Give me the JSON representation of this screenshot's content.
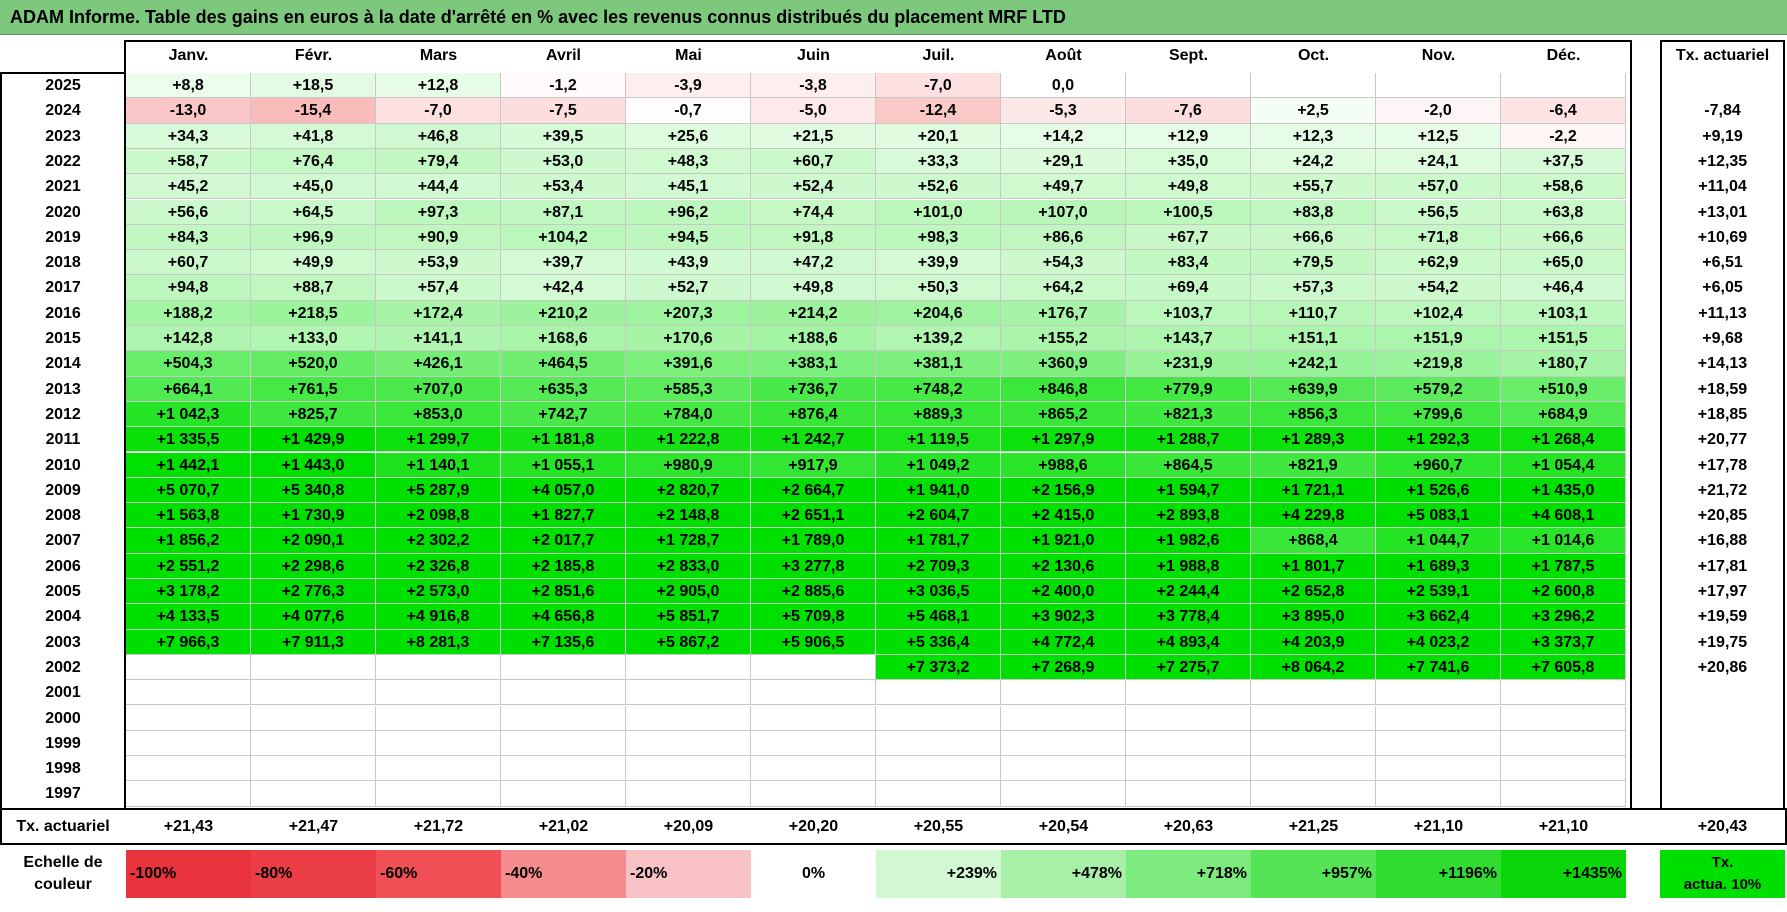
{
  "title": "ADAM Informe. Table des gains en euros à la date d'arrêté en % avec les revenus connus distribués du placement MRF LTD",
  "months": [
    "Janv.",
    "Févr.",
    "Mars",
    "Avril",
    "Mai",
    "Juin",
    "Juil.",
    "Août",
    "Sept.",
    "Oct.",
    "Nov.",
    "Déc."
  ],
  "actuarial_header": "Tx. actuariel",
  "rows": [
    {
      "year": "2025",
      "values": [
        "+8,8",
        "+18,5",
        "+12,8",
        "-1,2",
        "-3,9",
        "-3,8",
        "-7,0",
        "0,0",
        "",
        "",
        "",
        ""
      ],
      "rate": ""
    },
    {
      "year": "2024",
      "values": [
        "-13,0",
        "-15,4",
        "-7,0",
        "-7,5",
        "-0,7",
        "-5,0",
        "-12,4",
        "-5,3",
        "-7,6",
        "+2,5",
        "-2,0",
        "-6,4"
      ],
      "rate": "-7,84"
    },
    {
      "year": "2023",
      "values": [
        "+34,3",
        "+41,8",
        "+46,8",
        "+39,5",
        "+25,6",
        "+21,5",
        "+20,1",
        "+14,2",
        "+12,9",
        "+12,3",
        "+12,5",
        "-2,2"
      ],
      "rate": "+9,19"
    },
    {
      "year": "2022",
      "values": [
        "+58,7",
        "+76,4",
        "+79,4",
        "+53,0",
        "+48,3",
        "+60,7",
        "+33,3",
        "+29,1",
        "+35,0",
        "+24,2",
        "+24,1",
        "+37,5"
      ],
      "rate": "+12,35"
    },
    {
      "year": "2021",
      "values": [
        "+45,2",
        "+45,0",
        "+44,4",
        "+53,4",
        "+45,1",
        "+52,4",
        "+52,6",
        "+49,7",
        "+49,8",
        "+55,7",
        "+57,0",
        "+58,6"
      ],
      "rate": "+11,04"
    },
    {
      "year": "2020",
      "values": [
        "+56,6",
        "+64,5",
        "+97,3",
        "+87,1",
        "+96,2",
        "+74,4",
        "+101,0",
        "+107,0",
        "+100,5",
        "+83,8",
        "+56,5",
        "+63,8"
      ],
      "rate": "+13,01"
    },
    {
      "year": "2019",
      "values": [
        "+84,3",
        "+96,9",
        "+90,9",
        "+104,2",
        "+94,5",
        "+91,8",
        "+98,3",
        "+86,6",
        "+67,7",
        "+66,6",
        "+71,8",
        "+66,6"
      ],
      "rate": "+10,69"
    },
    {
      "year": "2018",
      "values": [
        "+60,7",
        "+49,9",
        "+53,9",
        "+39,7",
        "+43,9",
        "+47,2",
        "+39,9",
        "+54,3",
        "+83,4",
        "+79,5",
        "+62,9",
        "+65,0"
      ],
      "rate": "+6,51"
    },
    {
      "year": "2017",
      "values": [
        "+94,8",
        "+88,7",
        "+57,4",
        "+42,4",
        "+52,7",
        "+49,8",
        "+50,3",
        "+64,2",
        "+69,4",
        "+57,3",
        "+54,2",
        "+46,4"
      ],
      "rate": "+6,05"
    },
    {
      "year": "2016",
      "values": [
        "+188,2",
        "+218,5",
        "+172,4",
        "+210,2",
        "+207,3",
        "+214,2",
        "+204,6",
        "+176,7",
        "+103,7",
        "+110,7",
        "+102,4",
        "+103,1"
      ],
      "rate": "+11,13"
    },
    {
      "year": "2015",
      "values": [
        "+142,8",
        "+133,0",
        "+141,1",
        "+168,6",
        "+170,6",
        "+188,6",
        "+139,2",
        "+155,2",
        "+143,7",
        "+151,1",
        "+151,9",
        "+151,5"
      ],
      "rate": "+9,68"
    },
    {
      "year": "2014",
      "values": [
        "+504,3",
        "+520,0",
        "+426,1",
        "+464,5",
        "+391,6",
        "+383,1",
        "+381,1",
        "+360,9",
        "+231,9",
        "+242,1",
        "+219,8",
        "+180,7"
      ],
      "rate": "+14,13"
    },
    {
      "year": "2013",
      "values": [
        "+664,1",
        "+761,5",
        "+707,0",
        "+635,3",
        "+585,3",
        "+736,7",
        "+748,2",
        "+846,8",
        "+779,9",
        "+639,9",
        "+579,2",
        "+510,9"
      ],
      "rate": "+18,59"
    },
    {
      "year": "2012",
      "values": [
        "+1 042,3",
        "+825,7",
        "+853,0",
        "+742,7",
        "+784,0",
        "+876,4",
        "+889,3",
        "+865,2",
        "+821,3",
        "+856,3",
        "+799,6",
        "+684,9"
      ],
      "rate": "+18,85"
    },
    {
      "year": "2011",
      "values": [
        "+1 335,5",
        "+1 429,9",
        "+1 299,7",
        "+1 181,8",
        "+1 222,8",
        "+1 242,7",
        "+1 119,5",
        "+1 297,9",
        "+1 288,7",
        "+1 289,3",
        "+1 292,3",
        "+1 268,4"
      ],
      "rate": "+20,77"
    },
    {
      "year": "2010",
      "values": [
        "+1 442,1",
        "+1 443,0",
        "+1 140,1",
        "+1 055,1",
        "+980,9",
        "+917,9",
        "+1 049,2",
        "+988,6",
        "+864,5",
        "+821,9",
        "+960,7",
        "+1 054,4"
      ],
      "rate": "+17,78"
    },
    {
      "year": "2009",
      "values": [
        "+5 070,7",
        "+5 340,8",
        "+5 287,9",
        "+4 057,0",
        "+2 820,7",
        "+2 664,7",
        "+1 941,0",
        "+2 156,9",
        "+1 594,7",
        "+1 721,1",
        "+1 526,6",
        "+1 435,0"
      ],
      "rate": "+21,72"
    },
    {
      "year": "2008",
      "values": [
        "+1 563,8",
        "+1 730,9",
        "+2 098,8",
        "+1 827,7",
        "+2 148,8",
        "+2 651,1",
        "+2 604,7",
        "+2 415,0",
        "+2 893,8",
        "+4 229,8",
        "+5 083,1",
        "+4 608,1"
      ],
      "rate": "+20,85"
    },
    {
      "year": "2007",
      "values": [
        "+1 856,2",
        "+2 090,1",
        "+2 302,2",
        "+2 017,7",
        "+1 728,7",
        "+1 789,0",
        "+1 781,7",
        "+1 921,0",
        "+1 982,6",
        "+868,4",
        "+1 044,7",
        "+1 014,6"
      ],
      "rate": "+16,88"
    },
    {
      "year": "2006",
      "values": [
        "+2 551,2",
        "+2 298,6",
        "+2 326,8",
        "+2 185,8",
        "+2 833,0",
        "+3 277,8",
        "+2 709,3",
        "+2 130,6",
        "+1 988,8",
        "+1 801,7",
        "+1 689,3",
        "+1 787,5"
      ],
      "rate": "+17,81"
    },
    {
      "year": "2005",
      "values": [
        "+3 178,2",
        "+2 776,3",
        "+2 573,0",
        "+2 851,6",
        "+2 905,0",
        "+2 885,6",
        "+3 036,5",
        "+2 400,0",
        "+2 244,4",
        "+2 652,8",
        "+2 539,1",
        "+2 600,8"
      ],
      "rate": "+17,97"
    },
    {
      "year": "2004",
      "values": [
        "+4 133,5",
        "+4 077,6",
        "+4 916,8",
        "+4 656,8",
        "+5 851,7",
        "+5 709,8",
        "+5 468,1",
        "+3 902,3",
        "+3 778,4",
        "+3 895,0",
        "+3 662,4",
        "+3 296,2"
      ],
      "rate": "+19,59"
    },
    {
      "year": "2003",
      "values": [
        "+7 966,3",
        "+7 911,3",
        "+8 281,3",
        "+7 135,6",
        "+5 867,2",
        "+5 906,5",
        "+5 336,4",
        "+4 772,4",
        "+4 893,4",
        "+4 203,9",
        "+4 023,2",
        "+3 373,7"
      ],
      "rate": "+19,75"
    },
    {
      "year": "2002",
      "values": [
        "",
        "",
        "",
        "",
        "",
        "",
        "+7 373,2",
        "+7 268,9",
        "+7 275,7",
        "+8 064,2",
        "+7 741,6",
        "+7 605,8"
      ],
      "rate": "+20,86"
    },
    {
      "year": "2001",
      "values": [
        "",
        "",
        "",
        "",
        "",
        "",
        "",
        "",
        "",
        "",
        "",
        ""
      ],
      "rate": ""
    },
    {
      "year": "2000",
      "values": [
        "",
        "",
        "",
        "",
        "",
        "",
        "",
        "",
        "",
        "",
        "",
        ""
      ],
      "rate": ""
    },
    {
      "year": "1999",
      "values": [
        "",
        "",
        "",
        "",
        "",
        "",
        "",
        "",
        "",
        "",
        "",
        ""
      ],
      "rate": ""
    },
    {
      "year": "1998",
      "values": [
        "",
        "",
        "",
        "",
        "",
        "",
        "",
        "",
        "",
        "",
        "",
        ""
      ],
      "rate": ""
    },
    {
      "year": "1997",
      "values": [
        "",
        "",
        "",
        "",
        "",
        "",
        "",
        "",
        "",
        "",
        "",
        ""
      ],
      "rate": ""
    }
  ],
  "footer": {
    "label": "Tx. actuariel",
    "values": [
      "+21,43",
      "+21,47",
      "+21,72",
      "+21,02",
      "+20,09",
      "+20,20",
      "+20,55",
      "+20,54",
      "+20,63",
      "+21,25",
      "+21,10",
      "+21,10"
    ],
    "total": "+20,43"
  },
  "legend": {
    "label_line1": "Echelle de",
    "label_line2": "couleur",
    "items": [
      {
        "text": "-100%",
        "color": "#e8323c",
        "align": "left"
      },
      {
        "text": "-80%",
        "color": "#ea3d45",
        "align": "left"
      },
      {
        "text": "-60%",
        "color": "#ef4f55",
        "align": "left"
      },
      {
        "text": "-40%",
        "color": "#f48b8d",
        "align": "left"
      },
      {
        "text": "-20%",
        "color": "#f9c3c5",
        "align": "left"
      },
      {
        "text": "0%",
        "color": "#ffffff",
        "align": "center"
      },
      {
        "text": "+239%",
        "color": "#d2f8d2",
        "align": "right"
      },
      {
        "text": "+478%",
        "color": "#a8f0a8",
        "align": "right"
      },
      {
        "text": "+718%",
        "color": "#7dea7d",
        "align": "right"
      },
      {
        "text": "+957%",
        "color": "#55e455",
        "align": "right"
      },
      {
        "text": "+1196%",
        "color": "#2fdc2f",
        "align": "right"
      },
      {
        "text": "+1435%",
        "color": "#0ad60a",
        "align": "right"
      }
    ],
    "reference_line1": "Tx.",
    "reference_line2": "actua. 10%",
    "reference_color": "#00e000"
  },
  "colors": {
    "title_bar": "#7ec87e",
    "max_green": "#00e000",
    "max_red": "#f46c6c"
  }
}
